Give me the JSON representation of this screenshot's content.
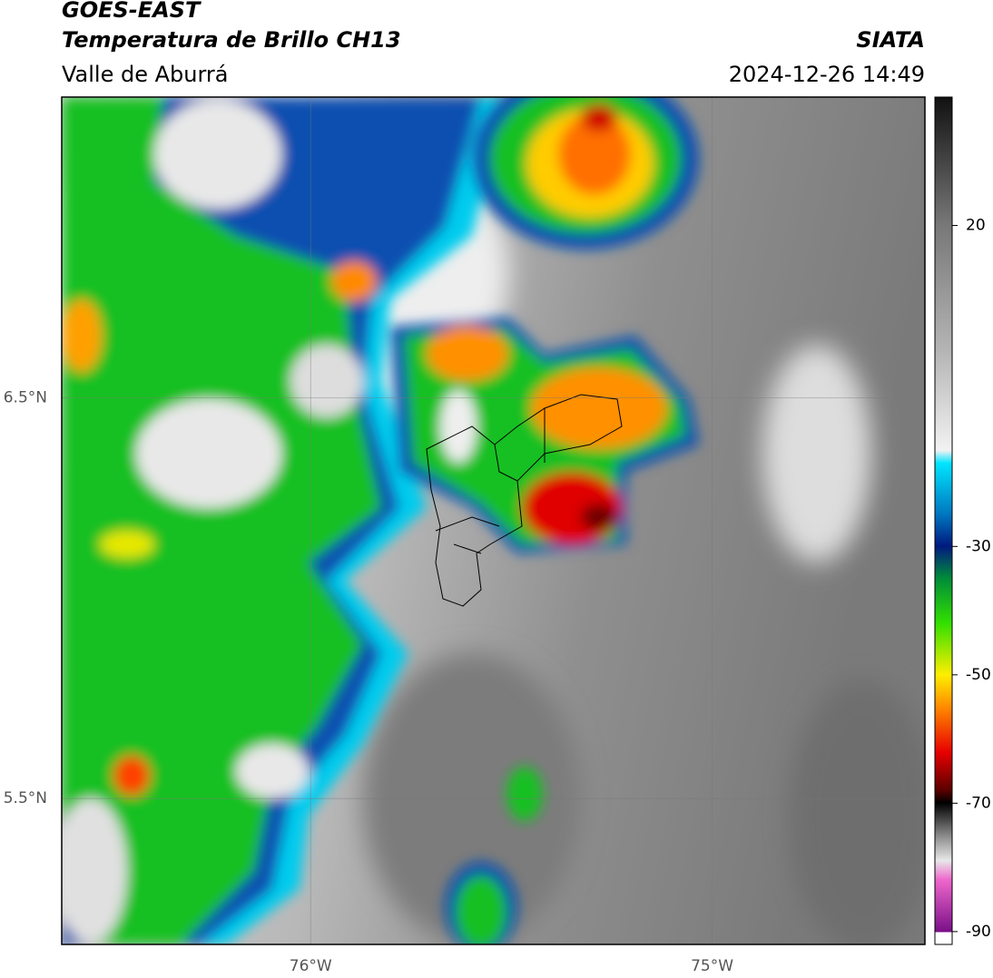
{
  "header": {
    "satellite": "GOES-EAST",
    "product": "Temperatura de Brillo CH13",
    "region": "Valle de Aburrá",
    "agency": "SIATA",
    "datetime": "2024-12-26 14:49"
  },
  "map": {
    "xlim": [
      -76.62,
      -74.47
    ],
    "ylim": [
      5.136,
      7.25
    ],
    "xticks": [
      {
        "value": -76,
        "label": "76°W"
      },
      {
        "value": -75,
        "label": "75°W"
      }
    ],
    "yticks": [
      {
        "value": 6.5,
        "label": "6.5°N"
      },
      {
        "value": 5.5,
        "label": "5.5°N"
      }
    ],
    "grid": true
  },
  "colorbar": {
    "lim": [
      -92,
      40
    ],
    "ticks": [
      20,
      -30,
      -50,
      -70,
      -90
    ]
  }
}
